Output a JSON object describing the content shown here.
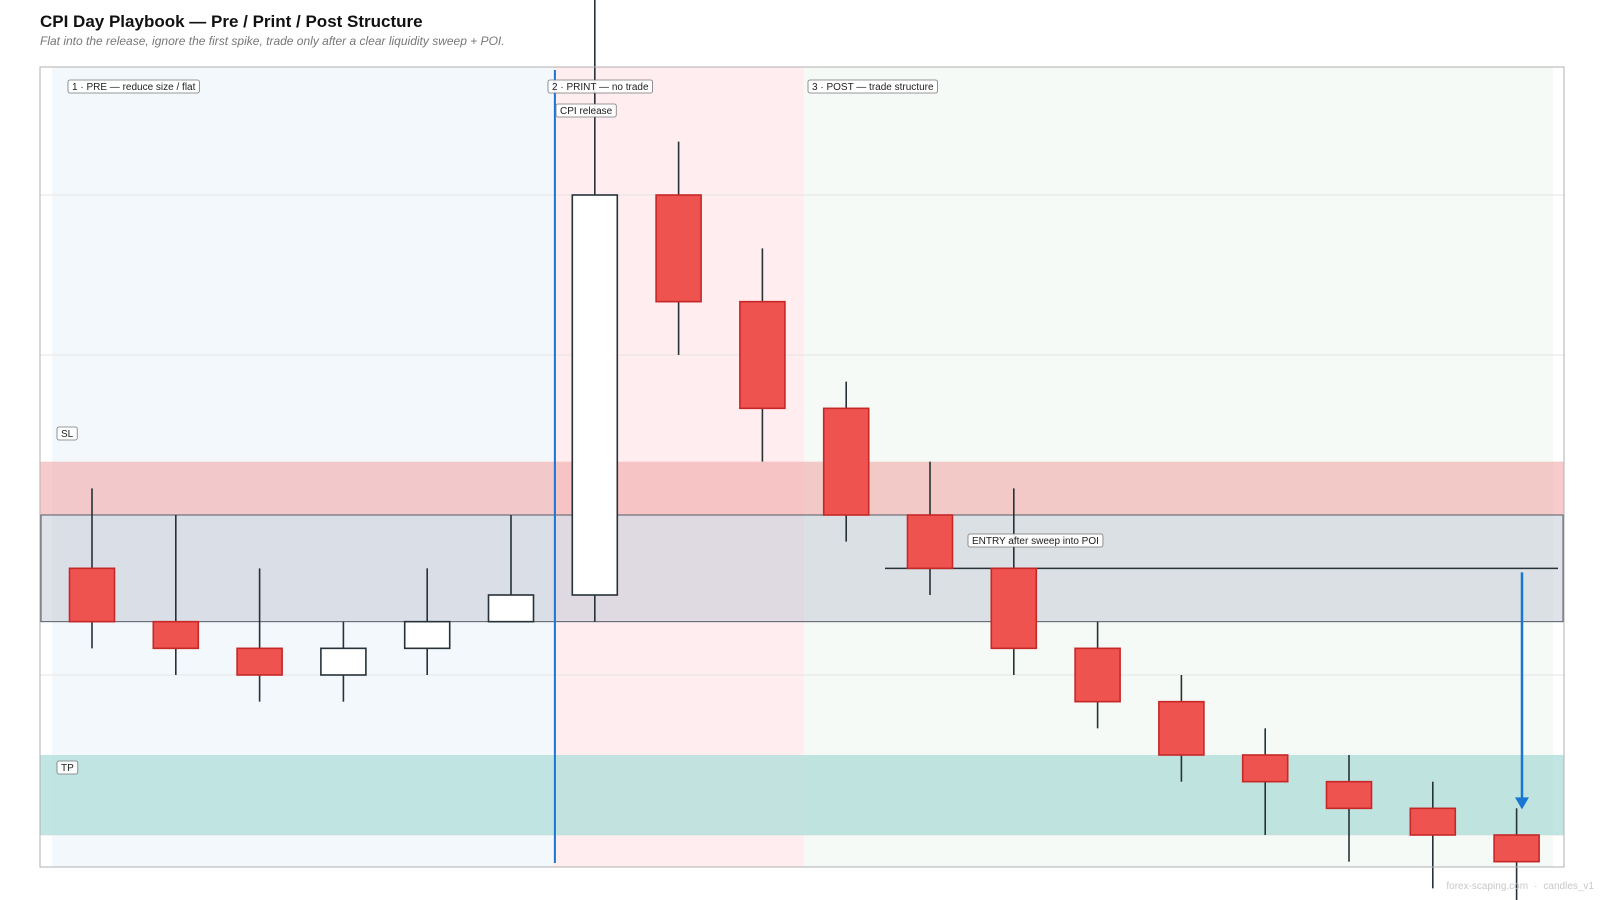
{
  "header": {
    "title": "CPI Day Playbook — Pre / Print / Post Structure",
    "subtitle": "Flat into the release, ignore the first spike, trade only after a clear liquidity sweep + POI."
  },
  "footer": {
    "site": "forex-scaping.com",
    "tag": "candles_v1"
  },
  "colors": {
    "bull_body": "#ffffff",
    "bear_body": "#ef5350",
    "bear_border": "#c62828",
    "bull_border": "#263238",
    "wick": "#263238",
    "pre_zone": "#f3f8fd",
    "print_zone": "#ffedef",
    "post_zone": "#f5faf6",
    "sl_band": "#f2a8a8",
    "tp_band": "#b2dfdb",
    "poi_box": "#c5cad6",
    "release_line": "#1976d2",
    "target_arrow": "#1976d2",
    "entry_line": "#263238"
  },
  "chart_data": {
    "type": "candlestick",
    "candles": [
      {
        "o": 52,
        "h": 55,
        "l": 49,
        "c": 50
      },
      {
        "o": 50,
        "h": 54,
        "l": 48,
        "c": 49
      },
      {
        "o": 49,
        "h": 52,
        "l": 47,
        "c": 48
      },
      {
        "o": 48,
        "h": 50,
        "l": 47,
        "c": 49
      },
      {
        "o": 49,
        "h": 52,
        "l": 48,
        "c": 50
      },
      {
        "o": 50,
        "h": 54,
        "l": 50,
        "c": 51
      },
      {
        "o": 51,
        "h": 80,
        "l": 50,
        "c": 66
      },
      {
        "o": 66,
        "h": 68,
        "l": 60,
        "c": 62
      },
      {
        "o": 62,
        "h": 64,
        "l": 56,
        "c": 58
      },
      {
        "o": 58,
        "h": 59,
        "l": 53,
        "c": 54
      },
      {
        "o": 54,
        "h": 56,
        "l": 51,
        "c": 52
      },
      {
        "o": 52,
        "h": 55,
        "l": 48,
        "c": 49
      },
      {
        "o": 49,
        "h": 50,
        "l": 46,
        "c": 47
      },
      {
        "o": 47,
        "h": 48,
        "l": 44,
        "c": 45
      },
      {
        "o": 45,
        "h": 46,
        "l": 42,
        "c": 44
      },
      {
        "o": 44,
        "h": 45,
        "l": 41,
        "c": 43
      },
      {
        "o": 43,
        "h": 44,
        "l": 40,
        "c": 42
      },
      {
        "o": 42,
        "h": 43,
        "l": 39,
        "c": 41
      }
    ],
    "ylim": [
      40.8,
      70.8
    ],
    "grid": true,
    "phases": [
      {
        "label": "1 · PRE — reduce size / flat",
        "start": -0.5,
        "end": 5.5
      },
      {
        "label": "2 · PRINT — no trade",
        "start": 5.5,
        "end": 8.5
      },
      {
        "label": "3 · POST — trade structure",
        "start": 8.5,
        "end": 17.5
      }
    ],
    "release": {
      "label": "CPI release",
      "index": 5.5
    },
    "sl_zone": {
      "label": "SL",
      "low": 54,
      "high": 56
    },
    "tp_zone": {
      "label": "TP",
      "low": 42,
      "high": 45
    },
    "poi_zone": {
      "low": 50,
      "high": 54
    },
    "entry": {
      "label": "ENTRY after sweep into POI",
      "price": 52,
      "from_index": 10
    },
    "target": {
      "index": 17.1,
      "from": 52,
      "to": 43
    }
  }
}
